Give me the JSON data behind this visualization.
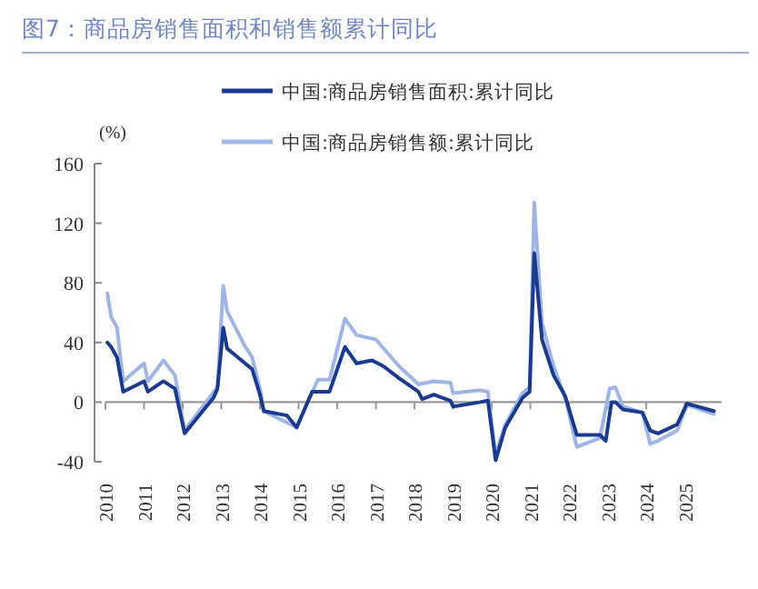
{
  "chart_data": {
    "type": "line",
    "title": "图7：商品房销售面积和销售额累计同比",
    "ylabel": "(%)",
    "xlim": [
      2010,
      2025.95
    ],
    "xticks": [
      2010,
      2011,
      2012,
      2013,
      2014,
      2015,
      2016,
      2017,
      2018,
      2019,
      2020,
      2021,
      2022,
      2023,
      2024,
      2025
    ],
    "ylim": [
      -40,
      160
    ],
    "yticks": [
      -40,
      0,
      40,
      80,
      120,
      160
    ],
    "legend": "top",
    "line_style": "solid",
    "series": [
      {
        "name": "中国:商品房销售面积:累计同比",
        "color": "#1a3a8f",
        "x": [
          2010.05,
          2010.15,
          2010.3,
          2010.46,
          2011.0,
          2011.1,
          2011.5,
          2011.8,
          2012.05,
          2012.8,
          2012.9,
          2013.05,
          2013.15,
          2013.8,
          2014.0,
          2014.1,
          2014.7,
          2014.95,
          2015.35,
          2015.8,
          2016.2,
          2016.5,
          2016.9,
          2017.2,
          2017.6,
          2018.1,
          2018.2,
          2018.5,
          2018.93,
          2019.0,
          2019.7,
          2019.9,
          2020.1,
          2020.35,
          2020.8,
          2020.98,
          2021.1,
          2021.3,
          2021.6,
          2021.9,
          2022.2,
          2022.8,
          2022.95,
          2023.1,
          2023.2,
          2023.4,
          2023.9,
          2024.1,
          2024.3,
          2024.8,
          2025.05,
          2025.75
        ],
        "values": [
          40,
          37,
          30,
          7,
          14,
          7,
          14,
          9,
          -21,
          3,
          9,
          50,
          36,
          22,
          5,
          -6,
          -9,
          -17,
          7,
          7,
          37,
          26,
          28,
          24,
          16,
          7,
          2,
          5,
          1,
          -3,
          0,
          1,
          -39,
          -17,
          3,
          7,
          100,
          42,
          18,
          4,
          -22,
          -22,
          -26,
          0,
          0,
          -5,
          -7,
          -19,
          -21,
          -15,
          -1,
          -6
        ]
      },
      {
        "name": "中国:商品房销售额:累计同比",
        "color": "#9fb5e5",
        "x": [
          2010.05,
          2010.15,
          2010.3,
          2010.46,
          2011.0,
          2011.1,
          2011.5,
          2011.8,
          2012.05,
          2012.9,
          2013.05,
          2013.15,
          2013.6,
          2013.8,
          2014.0,
          2014.1,
          2014.95,
          2015.5,
          2015.8,
          2016.2,
          2016.5,
          2017.0,
          2017.6,
          2018.1,
          2018.5,
          2018.93,
          2019.0,
          2019.7,
          2019.9,
          2020.1,
          2020.35,
          2020.8,
          2020.98,
          2021.1,
          2021.3,
          2021.6,
          2021.9,
          2022.2,
          2022.8,
          2023.05,
          2023.2,
          2023.4,
          2023.9,
          2024.1,
          2024.3,
          2024.8,
          2025.05,
          2025.75
        ],
        "values": [
          73,
          57,
          50,
          14,
          26,
          14,
          28,
          18,
          -19,
          10,
          78,
          61,
          38,
          30,
          9,
          -6,
          -17,
          15,
          15,
          56,
          45,
          42,
          24,
          12,
          14,
          13,
          6,
          8,
          7,
          -35,
          -15,
          6,
          10,
          134,
          53,
          24,
          3,
          -30,
          -24,
          9,
          10,
          -3,
          -7,
          -28,
          -26,
          -19,
          -2,
          -8
        ]
      }
    ]
  }
}
